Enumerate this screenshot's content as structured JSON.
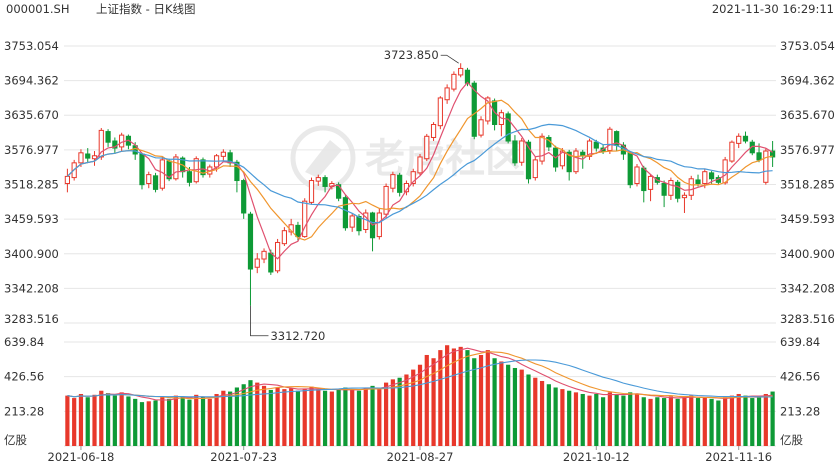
{
  "header": {
    "symbol": "000001.SH",
    "name": "上证指数 - 日K线图",
    "datetime": "2021-11-30 16:29:11"
  },
  "watermark": {
    "text": "老虎社区"
  },
  "colors": {
    "up": "#e8382b",
    "down": "#0e9a36",
    "ma5": "#e0506f",
    "ma10": "#f0962e",
    "ma20": "#4a9ad8",
    "grid": "#e6e6e6",
    "axis_text": "#333333"
  },
  "chart_data": {
    "type": "candlestick",
    "price_axis": {
      "ticks": [
        "3753.054",
        "3694.362",
        "3635.670",
        "3576.977",
        "3518.285",
        "3459.593",
        "3400.900",
        "3342.208",
        "3283.516"
      ],
      "ylim": [
        3283.516,
        3753.054
      ]
    },
    "volume_axis": {
      "ticks": [
        "639.84",
        "426.56",
        "213.28"
      ],
      "unit": "亿股",
      "ylim": [
        0,
        639.84
      ]
    },
    "x_ticks": [
      "2021-06-18",
      "2021-07-23",
      "2021-08-27",
      "2021-10-12",
      "2021-11-16"
    ],
    "annotations": {
      "high_label": "3723.850",
      "low_label": "3312.720"
    },
    "candles": [
      [
        3520,
        3532,
        3505,
        3545
      ],
      [
        3530,
        3555,
        3525,
        3560
      ],
      [
        3555,
        3572,
        3548,
        3578
      ],
      [
        3570,
        3563,
        3555,
        3580
      ],
      [
        3562,
        3567,
        3550,
        3575
      ],
      [
        3565,
        3610,
        3560,
        3614
      ],
      [
        3608,
        3590,
        3582,
        3612
      ],
      [
        3592,
        3580,
        3570,
        3598
      ],
      [
        3582,
        3602,
        3575,
        3606
      ],
      [
        3600,
        3585,
        3578,
        3603
      ],
      [
        3584,
        3570,
        3560,
        3590
      ],
      [
        3570,
        3518,
        3510,
        3572
      ],
      [
        3520,
        3535,
        3512,
        3540
      ],
      [
        3533,
        3510,
        3505,
        3538
      ],
      [
        3512,
        3560,
        3508,
        3565
      ],
      [
        3558,
        3528,
        3524,
        3562
      ],
      [
        3528,
        3565,
        3525,
        3570
      ],
      [
        3563,
        3540,
        3530,
        3566
      ],
      [
        3540,
        3522,
        3515,
        3548
      ],
      [
        3523,
        3562,
        3520,
        3566
      ],
      [
        3560,
        3535,
        3530,
        3564
      ],
      [
        3536,
        3548,
        3530,
        3552
      ],
      [
        3548,
        3567,
        3540,
        3570
      ],
      [
        3566,
        3573,
        3558,
        3578
      ],
      [
        3572,
        3555,
        3548,
        3577
      ],
      [
        3556,
        3525,
        3505,
        3560
      ],
      [
        3525,
        3470,
        3460,
        3528
      ],
      [
        3468,
        3375,
        3312.72,
        3472
      ],
      [
        3378,
        3392,
        3368,
        3402
      ],
      [
        3392,
        3405,
        3385,
        3410
      ],
      [
        3402,
        3370,
        3365,
        3408
      ],
      [
        3372,
        3420,
        3368,
        3426
      ],
      [
        3418,
        3440,
        3414,
        3446
      ],
      [
        3438,
        3450,
        3432,
        3460
      ],
      [
        3449,
        3430,
        3423,
        3455
      ],
      [
        3430,
        3490,
        3428,
        3495
      ],
      [
        3488,
        3525,
        3484,
        3530
      ],
      [
        3524,
        3530,
        3516,
        3535
      ],
      [
        3530,
        3515,
        3505,
        3534
      ],
      [
        3515,
        3520,
        3510,
        3524
      ],
      [
        3518,
        3495,
        3490,
        3522
      ],
      [
        3496,
        3445,
        3440,
        3500
      ],
      [
        3446,
        3465,
        3438,
        3470
      ],
      [
        3464,
        3440,
        3432,
        3468
      ],
      [
        3442,
        3470,
        3436,
        3476
      ],
      [
        3470,
        3428,
        3405,
        3472
      ],
      [
        3430,
        3470,
        3425,
        3478
      ],
      [
        3468,
        3515,
        3462,
        3520
      ],
      [
        3512,
        3535,
        3505,
        3540
      ],
      [
        3534,
        3505,
        3498,
        3538
      ],
      [
        3506,
        3520,
        3500,
        3525
      ],
      [
        3520,
        3540,
        3515,
        3545
      ],
      [
        3538,
        3565,
        3534,
        3570
      ],
      [
        3562,
        3600,
        3558,
        3604
      ],
      [
        3598,
        3620,
        3592,
        3624
      ],
      [
        3618,
        3665,
        3612,
        3668
      ],
      [
        3662,
        3682,
        3655,
        3688
      ],
      [
        3680,
        3705,
        3676,
        3710
      ],
      [
        3704,
        3715,
        3700,
        3723.85
      ],
      [
        3712,
        3690,
        3685,
        3716
      ],
      [
        3690,
        3600,
        3595,
        3694
      ],
      [
        3602,
        3628,
        3598,
        3634
      ],
      [
        3626,
        3665,
        3620,
        3668
      ],
      [
        3660,
        3620,
        3610,
        3664
      ],
      [
        3620,
        3640,
        3600,
        3645
      ],
      [
        3638,
        3592,
        3588,
        3642
      ],
      [
        3592,
        3555,
        3550,
        3602
      ],
      [
        3556,
        3592,
        3550,
        3597
      ],
      [
        3590,
        3528,
        3520,
        3594
      ],
      [
        3530,
        3560,
        3525,
        3565
      ],
      [
        3558,
        3600,
        3552,
        3605
      ],
      [
        3598,
        3582,
        3575,
        3602
      ],
      [
        3580,
        3548,
        3540,
        3584
      ],
      [
        3550,
        3575,
        3544,
        3580
      ],
      [
        3573,
        3540,
        3525,
        3577
      ],
      [
        3540,
        3575,
        3536,
        3580
      ],
      [
        3573,
        3568,
        3545,
        3577
      ],
      [
        3566,
        3592,
        3560,
        3596
      ],
      [
        3590,
        3580,
        3574,
        3594
      ],
      [
        3580,
        3575,
        3570,
        3586
      ],
      [
        3576,
        3612,
        3570,
        3616
      ],
      [
        3608,
        3585,
        3575,
        3610
      ],
      [
        3585,
        3570,
        3560,
        3590
      ],
      [
        3572,
        3518,
        3512,
        3575
      ],
      [
        3520,
        3548,
        3515,
        3553
      ],
      [
        3546,
        3508,
        3488,
        3550
      ],
      [
        3510,
        3532,
        3490,
        3535
      ],
      [
        3530,
        3522,
        3518,
        3535
      ],
      [
        3520,
        3500,
        3480,
        3525
      ],
      [
        3500,
        3525,
        3492,
        3530
      ],
      [
        3522,
        3495,
        3488,
        3526
      ],
      [
        3496,
        3500,
        3470,
        3505
      ],
      [
        3500,
        3528,
        3492,
        3533
      ],
      [
        3526,
        3520,
        3515,
        3535
      ],
      [
        3520,
        3540,
        3512,
        3544
      ],
      [
        3538,
        3528,
        3520,
        3541
      ],
      [
        3530,
        3522,
        3518,
        3534
      ],
      [
        3521,
        3560,
        3518,
        3565
      ],
      [
        3558,
        3590,
        3555,
        3593
      ],
      [
        3588,
        3600,
        3580,
        3605
      ],
      [
        3600,
        3592,
        3588,
        3608
      ],
      [
        3590,
        3572,
        3568,
        3594
      ],
      [
        3572,
        3560,
        3556,
        3588
      ],
      [
        3522,
        3575,
        3518,
        3580
      ],
      [
        3575,
        3565,
        3548,
        3592
      ]
    ],
    "volumes": [
      310,
      295,
      320,
      300,
      315,
      340,
      325,
      310,
      330,
      305,
      290,
      270,
      275,
      280,
      300,
      290,
      310,
      305,
      285,
      315,
      300,
      290,
      320,
      340,
      335,
      360,
      380,
      405,
      390,
      370,
      345,
      360,
      350,
      355,
      340,
      350,
      365,
      350,
      340,
      335,
      345,
      360,
      350,
      340,
      355,
      370,
      360,
      390,
      410,
      420,
      440,
      470,
      500,
      560,
      540,
      590,
      620,
      600,
      610,
      590,
      540,
      560,
      590,
      540,
      520,
      500,
      480,
      470,
      440,
      420,
      400,
      380,
      360,
      350,
      340,
      330,
      320,
      310,
      320,
      300,
      330,
      320,
      310,
      330,
      320,
      300,
      290,
      300,
      295,
      305,
      290,
      300,
      310,
      295,
      300,
      290,
      280,
      300,
      310,
      320,
      310,
      295,
      300,
      320,
      335
    ]
  }
}
